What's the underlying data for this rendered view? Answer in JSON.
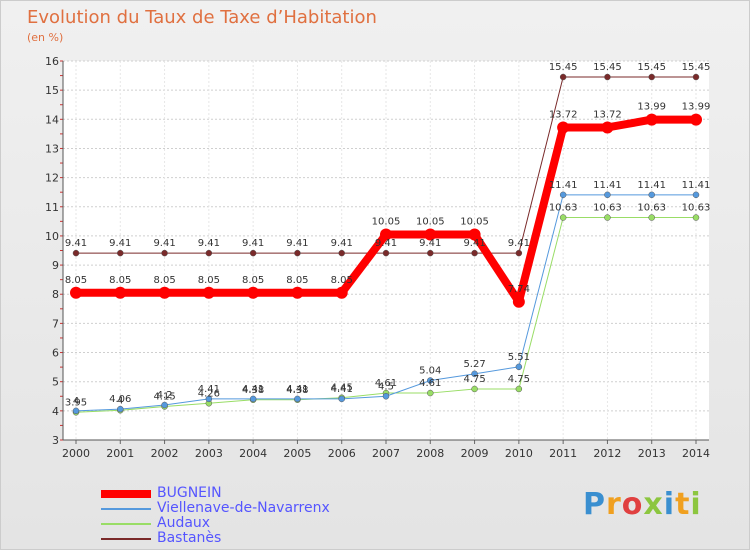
{
  "header": {
    "title": "Evolution du Taux de Taxe d’Habitation",
    "subtitle": "(en %)"
  },
  "logo": {
    "text": "Proxiti",
    "letters": [
      {
        "ch": "P",
        "color": "#3a8fd0"
      },
      {
        "ch": "r",
        "color": "#f0a020"
      },
      {
        "ch": "o",
        "color": "#e04040"
      },
      {
        "ch": "x",
        "color": "#8cc63f"
      },
      {
        "ch": "i",
        "color": "#3a8fd0"
      },
      {
        "ch": "t",
        "color": "#f0a020"
      },
      {
        "ch": "i",
        "color": "#8cc63f"
      }
    ]
  },
  "chart_data": {
    "type": "line",
    "x": [
      "2000",
      "2001",
      "2002",
      "2003",
      "2004",
      "2005",
      "2006",
      "2007",
      "2008",
      "2009",
      "2010",
      "2011",
      "2012",
      "2013",
      "2014"
    ],
    "ylim": [
      3,
      16
    ],
    "yticks": [
      3,
      4,
      5,
      6,
      7,
      8,
      9,
      10,
      11,
      12,
      13,
      14,
      15,
      16
    ],
    "grid": true,
    "legend_position": "bottom-left",
    "series": [
      {
        "name": "Bastanès",
        "color": "#7a2a2a",
        "width": 1,
        "values": [
          9.41,
          9.41,
          9.41,
          9.41,
          9.41,
          9.41,
          9.41,
          9.41,
          9.41,
          9.41,
          9.41,
          15.45,
          15.45,
          15.45,
          15.45
        ],
        "labels": [
          "9.41",
          "9.41",
          "9.41",
          "9.41",
          "9.41",
          "9.41",
          "9.41",
          "9.41",
          "9.41",
          "9.41",
          "9.41",
          "15.45",
          "15.45",
          "15.45",
          "15.45"
        ]
      },
      {
        "name": "Audaux",
        "color": "#99dd66",
        "width": 1,
        "values": [
          3.95,
          4.02,
          4.15,
          4.26,
          4.38,
          4.38,
          4.45,
          4.61,
          4.61,
          4.75,
          4.75,
          10.63,
          10.63,
          10.63,
          10.63
        ],
        "labels": [
          "3.95",
          "4",
          "4.15",
          "4.26",
          "4.38",
          "4.38",
          "4.45",
          "4.61",
          "4.61",
          "4.75",
          "4.75",
          "10.63",
          "10.63",
          "10.63",
          "10.63"
        ]
      },
      {
        "name": "Viellenave-de-Navarrenx",
        "color": "#5599dd",
        "width": 1,
        "values": [
          4.0,
          4.06,
          4.2,
          4.41,
          4.41,
          4.41,
          4.41,
          4.5,
          5.04,
          5.27,
          5.51,
          11.41,
          11.41,
          11.41,
          11.41
        ],
        "labels": [
          "4",
          "4.06",
          "4.2",
          "4.41",
          "4.41",
          "4.41",
          "4.41",
          "4.5",
          "5.04",
          "5.27",
          "5.51",
          "11.41",
          "11.41",
          "11.41",
          "11.41"
        ]
      },
      {
        "name": "BUGNEIN",
        "color": "#ff0000",
        "width": 8,
        "values": [
          8.05,
          8.05,
          8.05,
          8.05,
          8.05,
          8.05,
          8.05,
          10.05,
          10.05,
          10.05,
          7.74,
          13.72,
          13.72,
          13.99,
          13.99
        ],
        "labels": [
          "8.05",
          "8.05",
          "8.05",
          "8.05",
          "8.05",
          "8.05",
          "8.05",
          "10.05",
          "10.05",
          "10.05",
          "7.74",
          "13.72",
          "13.72",
          "13.99",
          "13.99"
        ]
      }
    ]
  },
  "legend": {
    "items": [
      {
        "label": "BUGNEIN",
        "color": "#ff0000",
        "thickness": 8
      },
      {
        "label": "Viellenave-de-Navarrenx",
        "color": "#5599dd",
        "thickness": 2
      },
      {
        "label": "Audaux",
        "color": "#99dd66",
        "thickness": 2
      },
      {
        "label": "Bastanès",
        "color": "#7a2a2a",
        "thickness": 2
      }
    ]
  }
}
